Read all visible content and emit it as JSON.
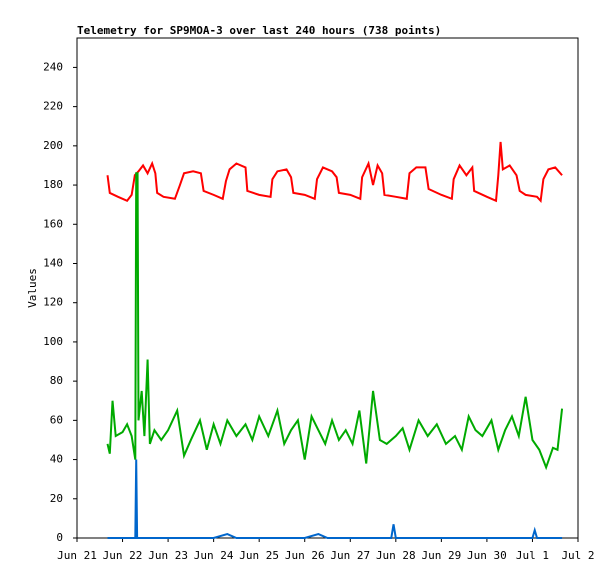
{
  "chart_data": {
    "type": "line",
    "title": "Telemetry for SP9MOA-3 over last 240 hours (738 points)",
    "y_label": "Values",
    "xlim": [
      0,
      11
    ],
    "xticks": [
      {
        "value": 0,
        "label": "Jun 21"
      },
      {
        "value": 1,
        "label": "Jun 22"
      },
      {
        "value": 2,
        "label": "Jun 23"
      },
      {
        "value": 3,
        "label": "Jun 24"
      },
      {
        "value": 4,
        "label": "Jun 25"
      },
      {
        "value": 5,
        "label": "Jun 26"
      },
      {
        "value": 6,
        "label": "Jun 27"
      },
      {
        "value": 7,
        "label": "Jun 28"
      },
      {
        "value": 8,
        "label": "Jun 29"
      },
      {
        "value": 9,
        "label": "Jun 30"
      },
      {
        "value": 10,
        "label": "Jul 1"
      },
      {
        "value": 11,
        "label": "Jul 2"
      }
    ],
    "ylim": [
      0,
      255
    ],
    "yticks": [
      0,
      20,
      40,
      60,
      80,
      100,
      120,
      140,
      160,
      180,
      200,
      220,
      240
    ],
    "grid": false,
    "series": [
      {
        "color": "#ff0000",
        "x": [
          0.67,
          0.72,
          0.9,
          1.1,
          1.2,
          1.27,
          1.35,
          1.45,
          1.55,
          1.65,
          1.72,
          1.76,
          1.9,
          2.15,
          2.26,
          2.35,
          2.55,
          2.72,
          2.78,
          3.0,
          3.2,
          3.27,
          3.35,
          3.5,
          3.7,
          3.74,
          4.0,
          4.25,
          4.29,
          4.4,
          4.6,
          4.7,
          4.75,
          5.0,
          5.22,
          5.27,
          5.4,
          5.6,
          5.7,
          5.75,
          6.0,
          6.22,
          6.26,
          6.4,
          6.5,
          6.6,
          6.7,
          6.75,
          7.0,
          7.24,
          7.3,
          7.45,
          7.65,
          7.72,
          8.0,
          8.23,
          8.27,
          8.4,
          8.55,
          8.68,
          8.72,
          9.0,
          9.2,
          9.25,
          9.3,
          9.35,
          9.5,
          9.65,
          9.72,
          9.85,
          10.1,
          10.18,
          10.24,
          10.35,
          10.5,
          10.65
        ],
        "values": [
          185,
          176,
          174,
          172,
          175,
          185,
          187,
          190,
          186,
          191,
          186,
          176,
          174,
          173,
          180,
          186,
          187,
          186,
          177,
          175,
          173,
          182,
          188,
          191,
          189,
          177,
          175,
          174,
          183,
          187,
          188,
          184,
          176,
          175,
          173,
          183,
          189,
          187,
          184,
          176,
          175,
          173,
          184,
          191,
          180,
          190,
          186,
          175,
          174,
          173,
          186,
          189,
          189,
          178,
          175,
          173,
          183,
          190,
          185,
          189,
          177,
          174,
          172,
          185,
          202,
          188,
          190,
          185,
          177,
          175,
          174,
          172,
          183,
          188,
          189,
          185
        ]
      },
      {
        "color": "#00aa00",
        "x": [
          0.67,
          0.72,
          0.78,
          0.85,
          1.0,
          1.1,
          1.2,
          1.28,
          1.3,
          1.33,
          1.35,
          1.42,
          1.48,
          1.55,
          1.6,
          1.7,
          1.85,
          2.0,
          2.2,
          2.35,
          2.5,
          2.7,
          2.85,
          3.0,
          3.15,
          3.3,
          3.5,
          3.7,
          3.85,
          4.0,
          4.2,
          4.4,
          4.55,
          4.7,
          4.85,
          5.0,
          5.15,
          5.3,
          5.45,
          5.6,
          5.75,
          5.9,
          6.05,
          6.2,
          6.35,
          6.5,
          6.65,
          6.8,
          7.0,
          7.15,
          7.3,
          7.5,
          7.7,
          7.9,
          8.1,
          8.3,
          8.45,
          8.6,
          8.75,
          8.9,
          9.1,
          9.25,
          9.4,
          9.55,
          9.7,
          9.85,
          10.0,
          10.15,
          10.3,
          10.45,
          10.55,
          10.65
        ],
        "values": [
          48,
          43,
          70,
          52,
          54,
          58,
          52,
          40,
          186,
          186,
          60,
          75,
          52,
          91,
          48,
          55,
          50,
          55,
          65,
          42,
          50,
          60,
          45,
          58,
          48,
          60,
          52,
          58,
          50,
          62,
          52,
          65,
          48,
          55,
          60,
          40,
          62,
          55,
          48,
          60,
          50,
          55,
          48,
          65,
          38,
          75,
          50,
          48,
          52,
          56,
          45,
          60,
          52,
          58,
          48,
          52,
          45,
          62,
          55,
          52,
          60,
          45,
          55,
          62,
          52,
          72,
          50,
          45,
          36,
          46,
          45,
          66
        ]
      },
      {
        "color": "#0066cc",
        "x": [
          0.67,
          1.28,
          1.3,
          1.32,
          3.0,
          3.3,
          3.5,
          5.0,
          5.3,
          5.5,
          6.9,
          6.95,
          7.0,
          10.0,
          10.05,
          10.1,
          10.65
        ],
        "values": [
          0,
          0,
          40,
          0,
          0,
          2,
          0,
          0,
          2,
          0,
          0,
          7,
          0,
          0,
          4,
          0,
          0
        ]
      }
    ]
  }
}
